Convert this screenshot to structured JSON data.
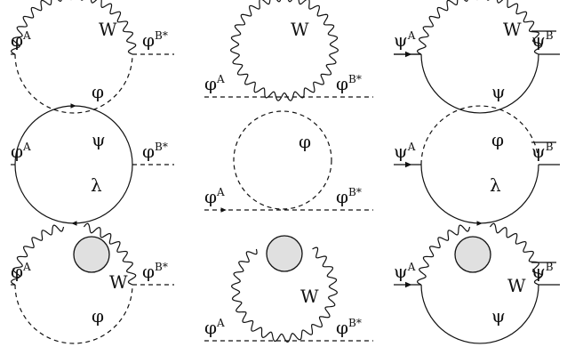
{
  "diagrams": [
    {
      "id": "r1c1",
      "incoming": {
        "base": "φ",
        "sup": "A"
      },
      "outgoing": {
        "base": "φ",
        "sup": "B*"
      },
      "internal": [
        {
          "name": "W"
        },
        {
          "name": "φ"
        }
      ]
    },
    {
      "id": "r1c2",
      "incoming": {
        "base": "φ",
        "sup": "A"
      },
      "outgoing": {
        "base": "φ",
        "sup": "B*"
      },
      "internal": [
        {
          "name": "W"
        }
      ]
    },
    {
      "id": "r1c3",
      "incoming": {
        "base": "ψ",
        "sup": "A"
      },
      "outgoing": {
        "base": "ψ",
        "sup": "B",
        "bar": true
      },
      "internal": [
        {
          "name": "W"
        },
        {
          "name": "ψ"
        }
      ]
    },
    {
      "id": "r2c1",
      "incoming": {
        "base": "φ",
        "sup": "A"
      },
      "outgoing": {
        "base": "φ",
        "sup": "B*"
      },
      "internal": [
        {
          "name": "ψ"
        },
        {
          "name": "λ"
        }
      ]
    },
    {
      "id": "r2c2",
      "incoming": {
        "base": "φ",
        "sup": "A"
      },
      "outgoing": {
        "base": "φ",
        "sup": "B*"
      },
      "internal": [
        {
          "name": "φ"
        }
      ]
    },
    {
      "id": "r2c3",
      "incoming": {
        "base": "ψ",
        "sup": "A"
      },
      "outgoing": {
        "base": "ψ",
        "sup": "B",
        "bar": true
      },
      "internal": [
        {
          "name": "φ"
        },
        {
          "name": "λ"
        }
      ]
    },
    {
      "id": "r3c1",
      "incoming": {
        "base": "φ",
        "sup": "A"
      },
      "outgoing": {
        "base": "φ",
        "sup": "B*"
      },
      "internal": [
        {
          "name": "W"
        },
        {
          "name": "φ"
        }
      ]
    },
    {
      "id": "r3c2",
      "incoming": {
        "base": "φ",
        "sup": "A"
      },
      "outgoing": {
        "base": "φ",
        "sup": "B*"
      },
      "internal": [
        {
          "name": "W"
        }
      ]
    },
    {
      "id": "r3c3",
      "incoming": {
        "base": "ψ",
        "sup": "A"
      },
      "outgoing": {
        "base": "ψ",
        "sup": "B",
        "bar": true
      },
      "internal": [
        {
          "name": "W"
        },
        {
          "name": "ψ"
        }
      ]
    }
  ]
}
